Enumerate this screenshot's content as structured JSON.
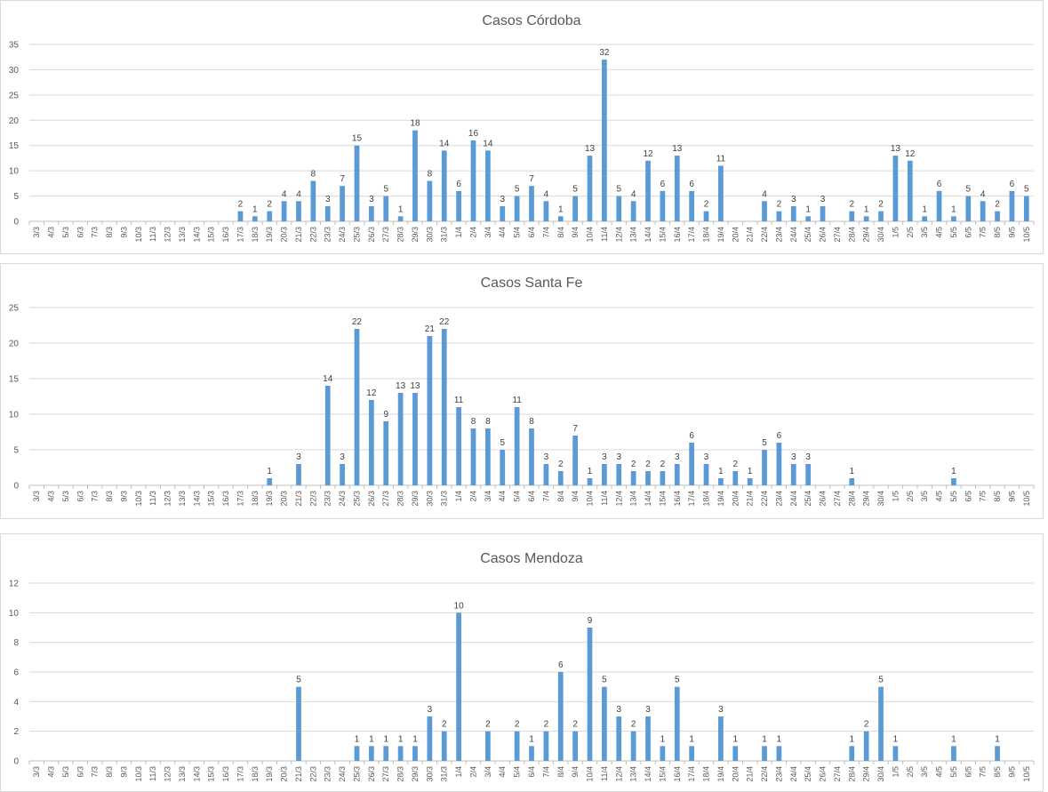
{
  "chart_data": [
    {
      "type": "bar",
      "title": "Casos Córdoba",
      "xlabel": "",
      "ylabel": "",
      "ylim": [
        0,
        35
      ],
      "yticks": [
        0,
        5,
        10,
        15,
        20,
        25,
        30,
        35
      ],
      "grid": true,
      "legend": "none",
      "color": "#5b9bd5",
      "categories": [
        "3/3",
        "4/3",
        "5/3",
        "6/3",
        "7/3",
        "8/3",
        "9/3",
        "10/3",
        "11/3",
        "12/3",
        "13/3",
        "14/3",
        "15/3",
        "16/3",
        "17/3",
        "18/3",
        "19/3",
        "20/3",
        "21/3",
        "22/3",
        "23/3",
        "24/3",
        "25/3",
        "26/3",
        "27/3",
        "28/3",
        "29/3",
        "30/3",
        "31/3",
        "1/4",
        "2/4",
        "3/4",
        "4/4",
        "5/4",
        "6/4",
        "7/4",
        "8/4",
        "9/4",
        "10/4",
        "11/4",
        "12/4",
        "13/4",
        "14/4",
        "15/4",
        "16/4",
        "17/4",
        "18/4",
        "19/4",
        "20/4",
        "21/4",
        "22/4",
        "23/4",
        "24/4",
        "25/4",
        "26/4",
        "27/4",
        "28/4",
        "29/4",
        "30/4",
        "1/5",
        "2/5",
        "3/5",
        "4/5",
        "5/5",
        "6/5",
        "7/5",
        "8/5",
        "9/5",
        "10/5"
      ],
      "values": [
        0,
        0,
        0,
        0,
        0,
        0,
        0,
        0,
        0,
        0,
        0,
        0,
        0,
        0,
        2,
        1,
        2,
        4,
        4,
        8,
        3,
        7,
        15,
        3,
        5,
        1,
        18,
        8,
        14,
        6,
        16,
        14,
        3,
        5,
        7,
        4,
        1,
        5,
        13,
        32,
        5,
        4,
        12,
        6,
        13,
        6,
        2,
        11,
        0,
        0,
        4,
        2,
        3,
        1,
        3,
        0,
        2,
        1,
        2,
        13,
        12,
        1,
        6,
        1,
        5,
        4,
        2,
        6,
        5
      ]
    },
    {
      "type": "bar",
      "title": "Casos Santa Fe",
      "xlabel": "",
      "ylabel": "",
      "ylim": [
        0,
        25
      ],
      "yticks": [
        0,
        5,
        10,
        15,
        20,
        25
      ],
      "grid": true,
      "legend": "none",
      "color": "#5b9bd5",
      "categories": [
        "3/3",
        "4/3",
        "5/3",
        "6/3",
        "7/3",
        "8/3",
        "9/3",
        "10/3",
        "11/3",
        "12/3",
        "13/3",
        "14/3",
        "15/3",
        "16/3",
        "17/3",
        "18/3",
        "19/3",
        "20/3",
        "21/3",
        "22/3",
        "23/3",
        "24/3",
        "25/3",
        "26/3",
        "27/3",
        "28/3",
        "29/3",
        "30/3",
        "31/3",
        "1/4",
        "2/4",
        "3/4",
        "4/4",
        "5/4",
        "6/4",
        "7/4",
        "8/4",
        "9/4",
        "10/4",
        "11/4",
        "12/4",
        "13/4",
        "14/4",
        "15/4",
        "16/4",
        "17/4",
        "18/4",
        "19/4",
        "20/4",
        "21/4",
        "22/4",
        "23/4",
        "24/4",
        "25/4",
        "26/4",
        "27/4",
        "28/4",
        "29/4",
        "30/4",
        "1/5",
        "2/5",
        "3/5",
        "4/5",
        "5/5",
        "6/5",
        "7/5",
        "8/5",
        "9/5",
        "10/5"
      ],
      "values": [
        0,
        0,
        0,
        0,
        0,
        0,
        0,
        0,
        0,
        0,
        0,
        0,
        0,
        0,
        0,
        0,
        1,
        0,
        3,
        0,
        14,
        3,
        22,
        12,
        9,
        13,
        13,
        21,
        22,
        11,
        8,
        8,
        5,
        11,
        8,
        3,
        2,
        7,
        1,
        3,
        3,
        2,
        2,
        2,
        3,
        6,
        3,
        1,
        2,
        1,
        5,
        6,
        3,
        3,
        0,
        0,
        1,
        0,
        0,
        0,
        0,
        0,
        0,
        1,
        0,
        0,
        0,
        0,
        0
      ]
    },
    {
      "type": "bar",
      "title": "Casos Mendoza",
      "xlabel": "",
      "ylabel": "",
      "ylim": [
        0,
        12
      ],
      "yticks": [
        0,
        2,
        4,
        6,
        8,
        10,
        12
      ],
      "grid": true,
      "legend": "none",
      "color": "#5b9bd5",
      "categories": [
        "3/3",
        "4/3",
        "5/3",
        "6/3",
        "7/3",
        "8/3",
        "9/3",
        "10/3",
        "11/3",
        "12/3",
        "13/3",
        "14/3",
        "15/3",
        "16/3",
        "17/3",
        "18/3",
        "19/3",
        "20/3",
        "21/3",
        "22/3",
        "23/3",
        "24/3",
        "25/3",
        "26/3",
        "27/3",
        "28/3",
        "29/3",
        "30/3",
        "31/3",
        "1/4",
        "2/4",
        "3/4",
        "4/4",
        "5/4",
        "6/4",
        "7/4",
        "8/4",
        "9/4",
        "10/4",
        "11/4",
        "12/4",
        "13/4",
        "14/4",
        "15/4",
        "16/4",
        "17/4",
        "18/4",
        "19/4",
        "20/4",
        "21/4",
        "22/4",
        "23/4",
        "24/4",
        "25/4",
        "26/4",
        "27/4",
        "28/4",
        "29/4",
        "30/4",
        "1/5",
        "2/5",
        "3/5",
        "4/5",
        "5/5",
        "6/5",
        "7/5",
        "8/5",
        "9/5",
        "10/5"
      ],
      "values": [
        0,
        0,
        0,
        0,
        0,
        0,
        0,
        0,
        0,
        0,
        0,
        0,
        0,
        0,
        0,
        0,
        0,
        0,
        5,
        0,
        0,
        0,
        1,
        1,
        1,
        1,
        1,
        3,
        2,
        10,
        0,
        2,
        0,
        2,
        1,
        2,
        6,
        2,
        9,
        5,
        3,
        2,
        3,
        1,
        5,
        1,
        0,
        3,
        1,
        0,
        1,
        1,
        0,
        0,
        0,
        0,
        1,
        2,
        5,
        1,
        0,
        0,
        0,
        1,
        0,
        0,
        1,
        0,
        0
      ]
    }
  ]
}
